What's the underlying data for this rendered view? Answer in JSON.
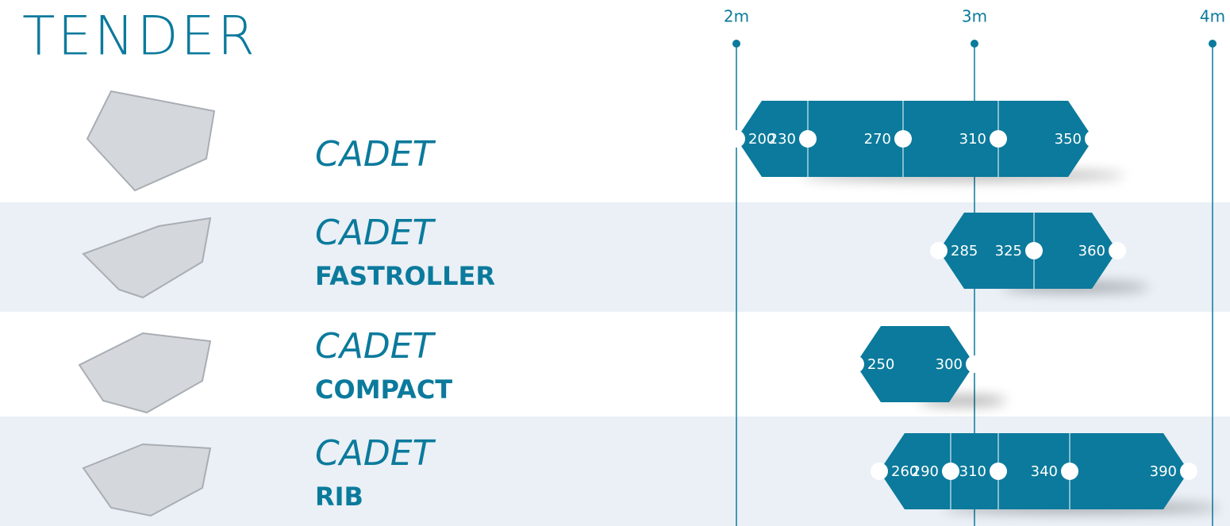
{
  "chart_data": {
    "type": "range",
    "title": "TENDER",
    "color": "#0b7a9c",
    "xlim": [
      200,
      400
    ],
    "xticks": [
      {
        "value": 200,
        "label": "2m"
      },
      {
        "value": 300,
        "label": "3m"
      },
      {
        "value": 400,
        "label": "4m"
      }
    ],
    "rows": [
      {
        "name": "CADET",
        "values": [
          200,
          230,
          270,
          310,
          350
        ]
      },
      {
        "name": "CADET",
        "model": "FASTROLLER",
        "values": [
          285,
          325,
          360
        ]
      },
      {
        "name": "CADET",
        "model": "COMPACT",
        "values": [
          250,
          300
        ]
      },
      {
        "name": "CADET",
        "model": "RIB",
        "values": [
          260,
          290,
          310,
          340,
          390
        ]
      }
    ]
  }
}
